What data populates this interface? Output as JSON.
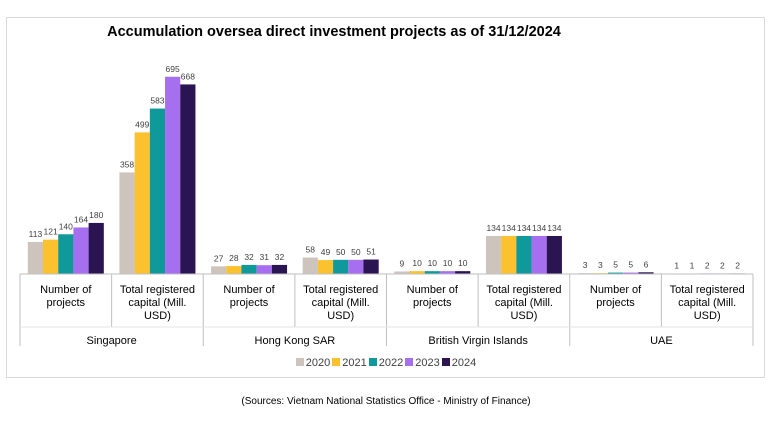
{
  "chart_data": {
    "type": "bar",
    "title": "Accumulation oversea direct investment projects as of 31/12/2024",
    "groups": [
      "Singapore",
      "Hong Kong SAR",
      "British Virgin Islands",
      "UAE"
    ],
    "subcategories": [
      "Number of projects",
      "Total registered capital (Mill. USD)"
    ],
    "subcategory_lines": [
      [
        "Number of",
        "projects"
      ],
      [
        "Total registered",
        "capital (Mill.",
        "USD)"
      ]
    ],
    "series": [
      {
        "name": "2020",
        "color": "#cdc4be",
        "values": [
          113,
          358,
          27,
          58,
          9,
          134,
          3,
          1
        ]
      },
      {
        "name": "2021",
        "color": "#fbc12f",
        "values": [
          121,
          499,
          28,
          49,
          10,
          134,
          3,
          1
        ]
      },
      {
        "name": "2022",
        "color": "#10999b",
        "values": [
          140,
          583,
          32,
          50,
          10,
          134,
          5,
          2
        ]
      },
      {
        "name": "2023",
        "color": "#a66ff0",
        "values": [
          164,
          695,
          31,
          50,
          10,
          134,
          5,
          2
        ]
      },
      {
        "name": "2024",
        "color": "#2a1452",
        "values": [
          180,
          668,
          32,
          51,
          10,
          134,
          6,
          2
        ]
      }
    ],
    "xlabel": "",
    "ylabel": "",
    "ylim": [
      0,
      740
    ],
    "grid": false,
    "legend_position": "bottom"
  },
  "source": "(Sources: Vietnam National Statistics Office - Ministry of Finance)"
}
